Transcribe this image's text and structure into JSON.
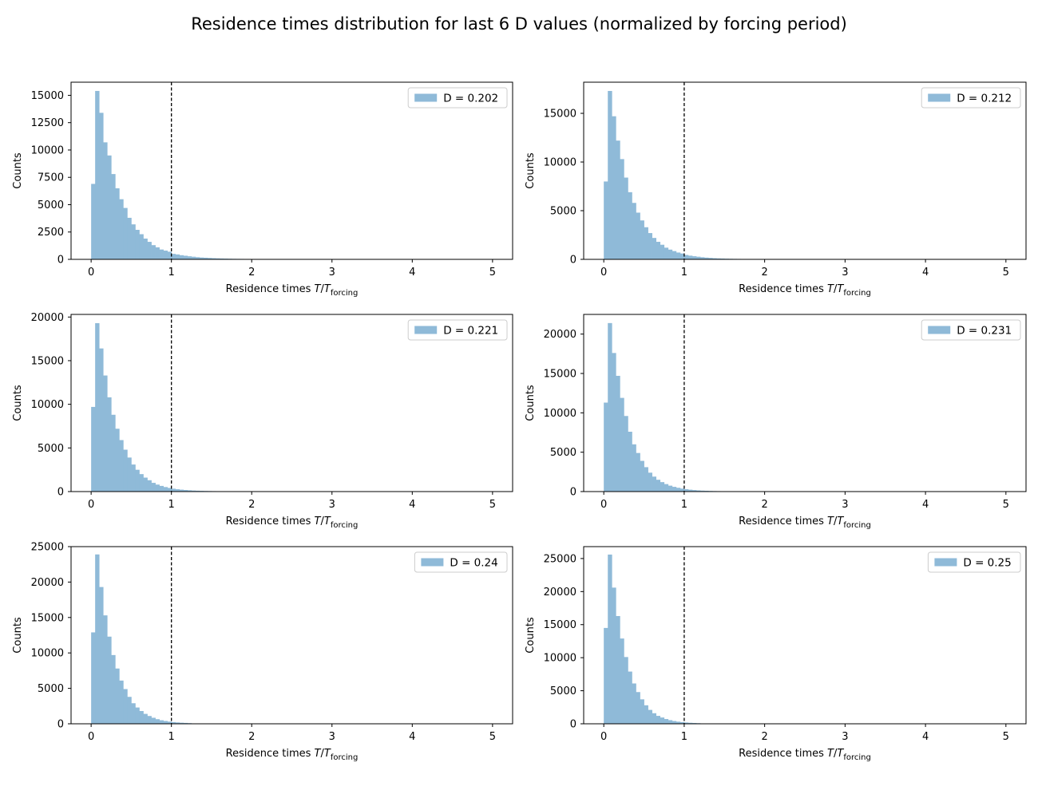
{
  "figure": {
    "title": "Residence times distribution for last 6 D values (normalized by forcing period)"
  },
  "chart_data": [
    {
      "type": "bar",
      "legend": "D = 0.202",
      "legend_position": "top-right",
      "xlabel": "Residence times T/T_forcing",
      "ylabel": "Counts",
      "xlim": [
        -0.25,
        5.25
      ],
      "ylim": [
        0,
        16200
      ],
      "xticks": [
        0,
        1,
        2,
        3,
        4,
        5
      ],
      "yticks": [
        0,
        2500,
        5000,
        7500,
        10000,
        12500,
        15000
      ],
      "ytick_labels": [
        "0",
        "2500",
        "5000",
        "7500",
        "10000",
        "12500",
        "15000"
      ],
      "vline_x": 1,
      "bin_width": 0.05,
      "bin_start": 0,
      "color": "#8fbad8",
      "values": [
        6900,
        15400,
        13400,
        10700,
        9500,
        7800,
        6500,
        5500,
        4700,
        3800,
        3200,
        2700,
        2300,
        1900,
        1600,
        1300,
        1100,
        900,
        800,
        700,
        500,
        450,
        380,
        330,
        280,
        240,
        200,
        170,
        150,
        130,
        110,
        95,
        80,
        70,
        60,
        50,
        45,
        40,
        35,
        30
      ]
    },
    {
      "type": "bar",
      "legend": "D = 0.212",
      "legend_position": "top-right",
      "xlabel": "Residence times T/T_forcing",
      "ylabel": "Counts",
      "xlim": [
        -0.25,
        5.25
      ],
      "ylim": [
        0,
        18200
      ],
      "xticks": [
        0,
        1,
        2,
        3,
        4,
        5
      ],
      "yticks": [
        0,
        5000,
        10000,
        15000
      ],
      "ytick_labels": [
        "0",
        "5000",
        "10000",
        "15000"
      ],
      "vline_x": 1,
      "bin_width": 0.05,
      "bin_start": 0,
      "color": "#8fbad8",
      "values": [
        8000,
        17300,
        14700,
        12200,
        10300,
        8400,
        6900,
        5800,
        4800,
        4000,
        3300,
        2700,
        2200,
        1800,
        1500,
        1200,
        1000,
        850,
        700,
        600,
        450,
        380,
        320,
        270,
        220,
        180,
        150,
        120,
        100,
        85,
        70,
        60,
        50,
        45,
        40,
        35
      ]
    },
    {
      "type": "bar",
      "legend": "D = 0.221",
      "legend_position": "top-right",
      "xlabel": "Residence times T/T_forcing",
      "ylabel": "Counts",
      "xlim": [
        -0.25,
        5.25
      ],
      "ylim": [
        0,
        20300
      ],
      "xticks": [
        0,
        1,
        2,
        3,
        4,
        5
      ],
      "yticks": [
        0,
        5000,
        10000,
        15000,
        20000
      ],
      "ytick_labels": [
        "0",
        "5000",
        "10000",
        "15000",
        "20000"
      ],
      "vline_x": 1,
      "bin_width": 0.05,
      "bin_start": 0,
      "color": "#8fbad8",
      "values": [
        9700,
        19300,
        16400,
        13300,
        10800,
        8800,
        7200,
        5900,
        4800,
        3900,
        3100,
        2500,
        2000,
        1600,
        1300,
        1000,
        800,
        650,
        520,
        420,
        330,
        270,
        220,
        180,
        150,
        120,
        100,
        85,
        70,
        60,
        50,
        45,
        40,
        35,
        30,
        28,
        25,
        22
      ]
    },
    {
      "type": "bar",
      "legend": "D = 0.231",
      "legend_position": "top-right",
      "xlabel": "Residence times T/T_forcing",
      "ylabel": "Counts",
      "xlim": [
        -0.25,
        5.25
      ],
      "ylim": [
        0,
        22500
      ],
      "xticks": [
        0,
        1,
        2,
        3,
        4,
        5
      ],
      "yticks": [
        0,
        5000,
        10000,
        15000,
        20000
      ],
      "ytick_labels": [
        "0",
        "5000",
        "10000",
        "15000",
        "20000"
      ],
      "vline_x": 1,
      "bin_width": 0.05,
      "bin_start": 0,
      "color": "#8fbad8",
      "values": [
        11300,
        21400,
        17600,
        14700,
        11900,
        9600,
        7600,
        6000,
        4900,
        3900,
        3100,
        2400,
        1900,
        1500,
        1200,
        950,
        750,
        600,
        480,
        380,
        300,
        240,
        190,
        150,
        120,
        100,
        80,
        65,
        55,
        45,
        40,
        35,
        30,
        25,
        22,
        20
      ]
    },
    {
      "type": "bar",
      "legend": "D = 0.24",
      "legend_position": "top-right",
      "xlabel": "Residence times T/T_forcing",
      "ylabel": "Counts",
      "xlim": [
        -0.25,
        5.25
      ],
      "ylim": [
        0,
        25000
      ],
      "xticks": [
        0,
        1,
        2,
        3,
        4,
        5
      ],
      "yticks": [
        0,
        5000,
        10000,
        15000,
        20000,
        25000
      ],
      "ytick_labels": [
        "0",
        "5000",
        "10000",
        "15000",
        "20000",
        "25000"
      ],
      "vline_x": 1,
      "bin_width": 0.05,
      "bin_start": 0,
      "color": "#8fbad8",
      "values": [
        12900,
        23900,
        19300,
        15300,
        12300,
        9700,
        7800,
        6100,
        4900,
        3800,
        2900,
        2300,
        1800,
        1400,
        1100,
        850,
        650,
        500,
        400,
        310,
        240,
        190,
        150,
        120,
        90
      ]
    },
    {
      "type": "bar",
      "legend": "D = 0.25",
      "legend_position": "top-right",
      "xlabel": "Residence times T/T_forcing",
      "ylabel": "Counts",
      "xlim": [
        -0.25,
        5.25
      ],
      "ylim": [
        0,
        26800
      ],
      "xticks": [
        0,
        1,
        2,
        3,
        4,
        5
      ],
      "yticks": [
        0,
        5000,
        10000,
        15000,
        20000,
        25000
      ],
      "ytick_labels": [
        "0",
        "5000",
        "10000",
        "15000",
        "20000",
        "25000"
      ],
      "vline_x": 1,
      "bin_width": 0.05,
      "bin_start": 0,
      "color": "#8fbad8",
      "values": [
        14500,
        25600,
        20600,
        16300,
        12900,
        10100,
        7900,
        6100,
        4800,
        3700,
        2800,
        2100,
        1600,
        1200,
        950,
        720,
        550,
        420,
        320,
        250,
        190,
        150,
        120,
        90
      ]
    }
  ]
}
